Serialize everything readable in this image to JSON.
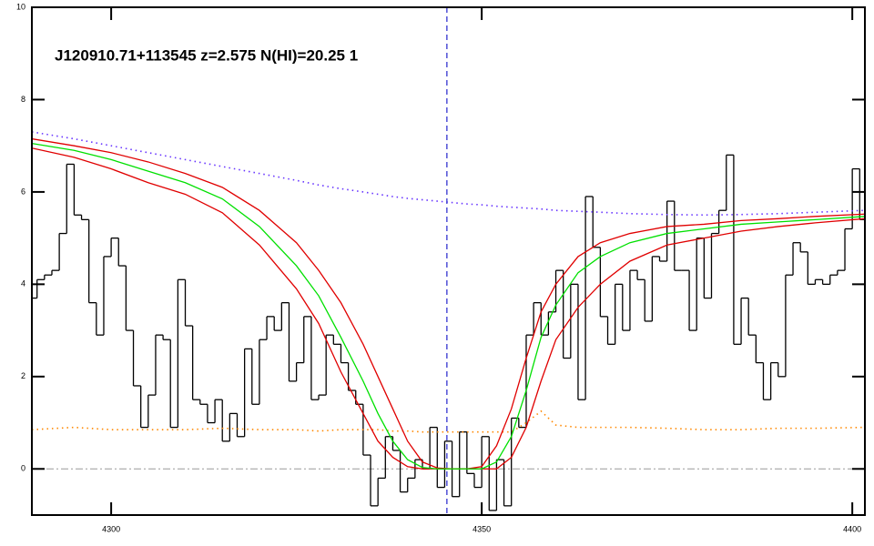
{
  "chart_data": {
    "type": "line",
    "title": "J120910.71+113545 z=2.575 N(HI)=20.25 1",
    "xlim": [
      4289.3,
      4401.7
    ],
    "ylim": [
      -1,
      10
    ],
    "xticks": [
      4300,
      4350,
      4400
    ],
    "yticks": [
      0,
      2,
      4,
      6,
      8,
      10
    ],
    "marker_x": 4345.3,
    "hline": 0,
    "series": [
      {
        "color": "#000000",
        "style": "step",
        "x": [
          4289.5,
          4290.5,
          4291.5,
          4292.5,
          4293.5,
          4294.5,
          4295.5,
          4296.5,
          4297.5,
          4298.5,
          4299.5,
          4300.5,
          4301.5,
          4302.5,
          4303.5,
          4304.5,
          4305.5,
          4306.5,
          4307.5,
          4308.5,
          4309.5,
          4310.5,
          4311.5,
          4312.5,
          4313.5,
          4314.5,
          4315.5,
          4316.5,
          4317.5,
          4318.5,
          4319.5,
          4320.5,
          4321.5,
          4322.5,
          4323.5,
          4324.5,
          4325.5,
          4326.5,
          4327.5,
          4328.5,
          4329.5,
          4330.5,
          4331.5,
          4332.5,
          4333.5,
          4334.5,
          4335.5,
          4336.5,
          4337.5,
          4338.5,
          4339.5,
          4340.5,
          4341.5,
          4342.5,
          4343.5,
          4344.5,
          4345.5,
          4346.5,
          4347.5,
          4348.5,
          4349.5,
          4350.5,
          4351.5,
          4352.5,
          4353.5,
          4354.5,
          4355.5,
          4356.5,
          4357.5,
          4358.5,
          4359.5,
          4360.5,
          4361.5,
          4362.5,
          4363.5,
          4364.5,
          4365.5,
          4366.5,
          4367.5,
          4368.5,
          4369.5,
          4370.5,
          4371.5,
          4372.5,
          4373.5,
          4374.5,
          4375.5,
          4376.5,
          4377.5,
          4378.5,
          4379.5,
          4380.5,
          4381.5,
          4382.5,
          4383.5,
          4384.5,
          4385.5,
          4386.5,
          4387.5,
          4388.5,
          4389.5,
          4390.5,
          4391.5,
          4392.5,
          4393.5,
          4394.5,
          4395.5,
          4396.5,
          4397.5,
          4398.5,
          4399.5,
          4400.5,
          4401.5
        ],
        "values": [
          3.7,
          4.1,
          4.2,
          4.3,
          5.1,
          6.6,
          5.5,
          5.4,
          3.6,
          2.9,
          4.6,
          5.0,
          4.4,
          3.0,
          1.8,
          0.9,
          1.6,
          2.9,
          2.8,
          0.9,
          4.1,
          3.1,
          1.5,
          1.4,
          1.0,
          1.5,
          0.6,
          1.2,
          0.7,
          2.6,
          1.4,
          2.8,
          3.3,
          3.0,
          3.6,
          1.9,
          2.3,
          3.3,
          1.5,
          1.6,
          2.9,
          2.7,
          2.3,
          1.7,
          1.4,
          0.3,
          -0.8,
          -0.2,
          0.7,
          0.4,
          -0.5,
          -0.2,
          0.2,
          0.0,
          0.9,
          -0.4,
          0.6,
          -0.6,
          0.8,
          -0.1,
          -0.4,
          0.7,
          -0.9,
          0.2,
          -0.8,
          1.1,
          0.9,
          2.9,
          3.6,
          2.9,
          3.4,
          4.3,
          2.4,
          4.0,
          1.5,
          5.9,
          4.8,
          3.3,
          2.7,
          4.0,
          3.0,
          4.3,
          4.1,
          3.2,
          4.6,
          4.5,
          5.8,
          4.3,
          4.3,
          3.0,
          5.0,
          3.7,
          5.1,
          5.6,
          6.8,
          2.7,
          3.7,
          2.9,
          2.3,
          1.5,
          2.3,
          2.0,
          4.2,
          4.9,
          4.7,
          4.0,
          4.1,
          4.0,
          4.2,
          4.3,
          5.2,
          6.5,
          5.4
        ]
      },
      {
        "color": "#6633ff",
        "style": "dotted",
        "x": [
          4289.3,
          4295,
          4300,
          4305,
          4310,
          4315,
          4320,
          4325,
          4328,
          4331,
          4334,
          4336,
          4338,
          4340,
          4342,
          4344,
          4346,
          4348,
          4350,
          4352,
          4354,
          4356,
          4358,
          4360,
          4363,
          4366,
          4370,
          4375,
          4380,
          4385,
          4390,
          4395,
          4401.7
        ],
        "values": [
          7.3,
          7.15,
          7.0,
          6.85,
          6.7,
          6.55,
          6.4,
          6.25,
          6.15,
          6.07,
          6.0,
          5.95,
          5.9,
          5.86,
          5.83,
          5.8,
          5.77,
          5.74,
          5.72,
          5.69,
          5.67,
          5.65,
          5.63,
          5.6,
          5.58,
          5.56,
          5.53,
          5.51,
          5.5,
          5.51,
          5.53,
          5.56,
          5.6
        ]
      },
      {
        "color": "#ff8800",
        "style": "dotted",
        "x": [
          4289.3,
          4295,
          4300,
          4305,
          4310,
          4315,
          4320,
          4325,
          4328,
          4331,
          4334,
          4336,
          4338,
          4340,
          4342,
          4344,
          4346,
          4348,
          4350,
          4352,
          4354,
          4356,
          4358,
          4360,
          4363,
          4366,
          4370,
          4375,
          4380,
          4385,
          4390,
          4395,
          4401.7
        ],
        "values": [
          0.85,
          0.9,
          0.85,
          0.85,
          0.85,
          0.88,
          0.85,
          0.85,
          0.82,
          0.85,
          0.85,
          0.85,
          0.82,
          0.82,
          0.8,
          0.8,
          0.8,
          0.8,
          0.8,
          0.8,
          0.8,
          1.0,
          1.25,
          0.95,
          0.9,
          0.9,
          0.9,
          0.88,
          0.85,
          0.85,
          0.88,
          0.88,
          0.9
        ]
      },
      {
        "color": "#e00000",
        "style": "solid",
        "x": [
          4289.3,
          4295,
          4300,
          4305,
          4310,
          4315,
          4320,
          4325,
          4328,
          4331,
          4334,
          4336,
          4338,
          4340,
          4342,
          4344,
          4346,
          4348,
          4350,
          4352,
          4354,
          4356,
          4358,
          4360,
          4363,
          4366,
          4370,
          4375,
          4380,
          4385,
          4390,
          4395,
          4401.7
        ],
        "values": [
          7.15,
          7.0,
          6.85,
          6.65,
          6.4,
          6.1,
          5.6,
          4.9,
          4.3,
          3.6,
          2.7,
          2.0,
          1.3,
          0.6,
          0.15,
          0.02,
          0,
          0,
          0.05,
          0.5,
          1.3,
          2.4,
          3.4,
          4.0,
          4.6,
          4.9,
          5.1,
          5.25,
          5.3,
          5.38,
          5.42,
          5.47,
          5.52
        ]
      },
      {
        "color": "#e00000",
        "style": "solid",
        "x": [
          4289.3,
          4295,
          4300,
          4305,
          4310,
          4315,
          4320,
          4325,
          4328,
          4331,
          4334,
          4336,
          4338,
          4340,
          4342,
          4344,
          4346,
          4348,
          4350,
          4352,
          4354,
          4356,
          4358,
          4360,
          4363,
          4366,
          4370,
          4375,
          4380,
          4385,
          4390,
          4395,
          4401.7
        ],
        "values": [
          6.95,
          6.75,
          6.5,
          6.2,
          5.95,
          5.55,
          4.85,
          3.9,
          3.15,
          2.1,
          1.2,
          0.6,
          0.25,
          0.05,
          0,
          0,
          0,
          0,
          0,
          0,
          0.25,
          0.9,
          1.9,
          2.8,
          3.5,
          4.0,
          4.5,
          4.85,
          5.0,
          5.15,
          5.25,
          5.33,
          5.42
        ]
      },
      {
        "color": "#00e000",
        "style": "solid",
        "x": [
          4289.3,
          4295,
          4300,
          4305,
          4310,
          4315,
          4320,
          4325,
          4328,
          4331,
          4334,
          4336,
          4338,
          4340,
          4342,
          4344,
          4346,
          4348,
          4350,
          4352,
          4354,
          4356,
          4358,
          4360,
          4363,
          4366,
          4370,
          4375,
          4380,
          4385,
          4390,
          4395,
          4401.7
        ],
        "values": [
          7.05,
          6.9,
          6.7,
          6.45,
          6.2,
          5.85,
          5.25,
          4.4,
          3.75,
          2.85,
          1.9,
          1.2,
          0.6,
          0.2,
          0.03,
          0,
          0,
          0,
          0,
          0.15,
          0.7,
          1.7,
          2.85,
          3.55,
          4.25,
          4.6,
          4.9,
          5.1,
          5.2,
          5.3,
          5.35,
          5.4,
          5.47
        ]
      }
    ]
  }
}
